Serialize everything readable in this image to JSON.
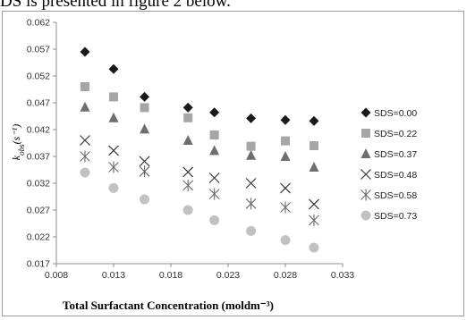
{
  "context": {
    "text": "DS is presented in figure 2 below."
  },
  "chart_data": {
    "type": "scatter",
    "title": "",
    "xlabel": "Total Surfactant Concentration (moldm⁻³)",
    "ylabel": "k_obs (s⁻¹)",
    "xlim": [
      0.008,
      0.033
    ],
    "ylim": [
      0.017,
      0.062
    ],
    "xticks": [
      "0.008",
      "0.013",
      "0.018",
      "0.023",
      "0.028",
      "0.033"
    ],
    "yticks": [
      "0.017",
      "0.022",
      "0.027",
      "0.032",
      "0.037",
      "0.042",
      "0.047",
      "0.052",
      "0.057",
      "0.062"
    ],
    "grid": false,
    "legend_position": "right",
    "x": [
      0.0105,
      0.013,
      0.0157,
      0.0195,
      0.0218,
      0.025,
      0.028,
      0.0305
    ],
    "series": [
      {
        "name": "SDS=0.00",
        "marker": "diamond",
        "color": "#1a1a1a",
        "values": [
          0.0565,
          0.0533,
          0.0481,
          0.0461,
          0.0452,
          0.0441,
          0.0438,
          0.0436
        ]
      },
      {
        "name": "SDS=0.22",
        "marker": "square",
        "color": "#a6a6a6",
        "values": [
          0.05,
          0.0481,
          0.0461,
          0.0442,
          0.041,
          0.0389,
          0.0399,
          0.039
        ]
      },
      {
        "name": "SDS=0.37",
        "marker": "triangle",
        "color": "#6e6e6e",
        "values": [
          0.0462,
          0.0442,
          0.0421,
          0.04,
          0.0381,
          0.0372,
          0.037,
          0.035
        ]
      },
      {
        "name": "SDS=0.48",
        "marker": "x",
        "color": "#3a3a3a",
        "values": [
          0.04,
          0.0381,
          0.0361,
          0.0341,
          0.033,
          0.032,
          0.0311,
          0.0281
        ]
      },
      {
        "name": "SDS=0.58",
        "marker": "asterisk",
        "color": "#6a6a6a",
        "values": [
          0.037,
          0.035,
          0.0342,
          0.0316,
          0.03,
          0.0282,
          0.0275,
          0.0251
        ]
      },
      {
        "name": "SDS=0.73",
        "marker": "circle",
        "color": "#c2c2c2",
        "values": [
          0.034,
          0.0311,
          0.029,
          0.027,
          0.0251,
          0.0231,
          0.0214,
          0.02
        ]
      }
    ]
  }
}
